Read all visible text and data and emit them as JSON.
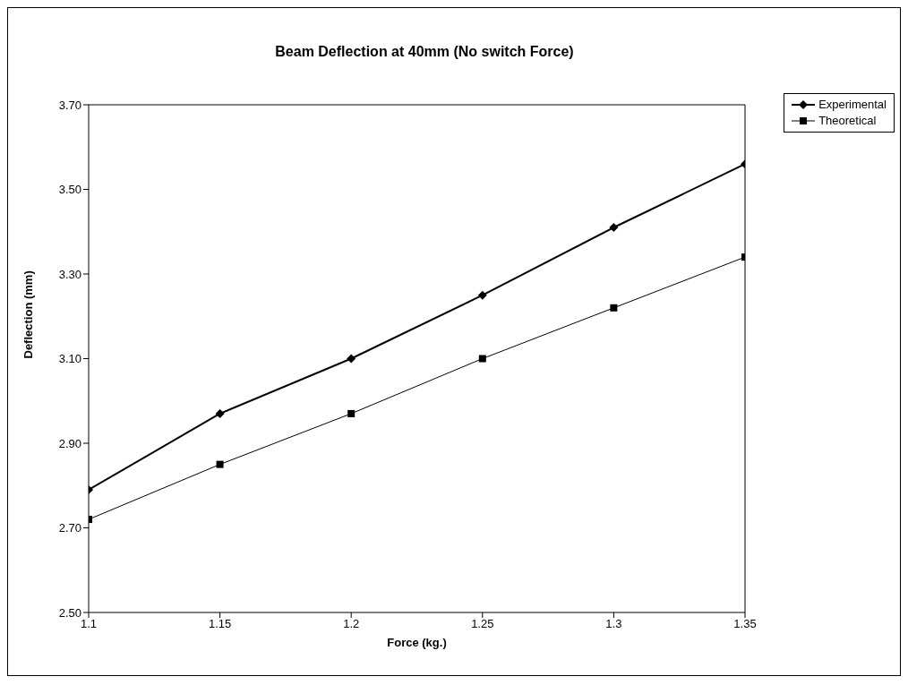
{
  "chart_data": {
    "type": "line",
    "title": "Beam Deflection at 40mm (No switch Force)",
    "xlabel": "Force (kg.)",
    "ylabel": "Deflection (mm)",
    "x": [
      1.1,
      1.15,
      1.2,
      1.25,
      1.3,
      1.35
    ],
    "series": [
      {
        "name": "Experimental",
        "color": "#000000",
        "marker": "diamond",
        "values": [
          2.79,
          2.97,
          3.1,
          3.25,
          3.41,
          3.56
        ]
      },
      {
        "name": "Theoretical",
        "color": "#000000",
        "marker": "square",
        "values": [
          2.72,
          2.85,
          2.97,
          3.1,
          3.22,
          3.34
        ]
      }
    ],
    "xlim": [
      1.1,
      1.35
    ],
    "xticks": [
      1.1,
      1.15,
      1.2,
      1.25,
      1.3,
      1.35
    ],
    "ylim": [
      2.5,
      3.7
    ],
    "yticks": [
      {
        "value": 2.5,
        "label": "2.50"
      },
      {
        "value": 2.7,
        "label": "2.70"
      },
      {
        "value": 2.9,
        "label": "2.90"
      },
      {
        "value": 3.1,
        "label": "3.10"
      },
      {
        "value": 3.3,
        "label": "3.30"
      },
      {
        "value": 3.5,
        "label": "3.50"
      },
      {
        "value": 3.7,
        "label": "3.70"
      }
    ],
    "grid": false,
    "legend": "top right",
    "line_style": "solid"
  }
}
